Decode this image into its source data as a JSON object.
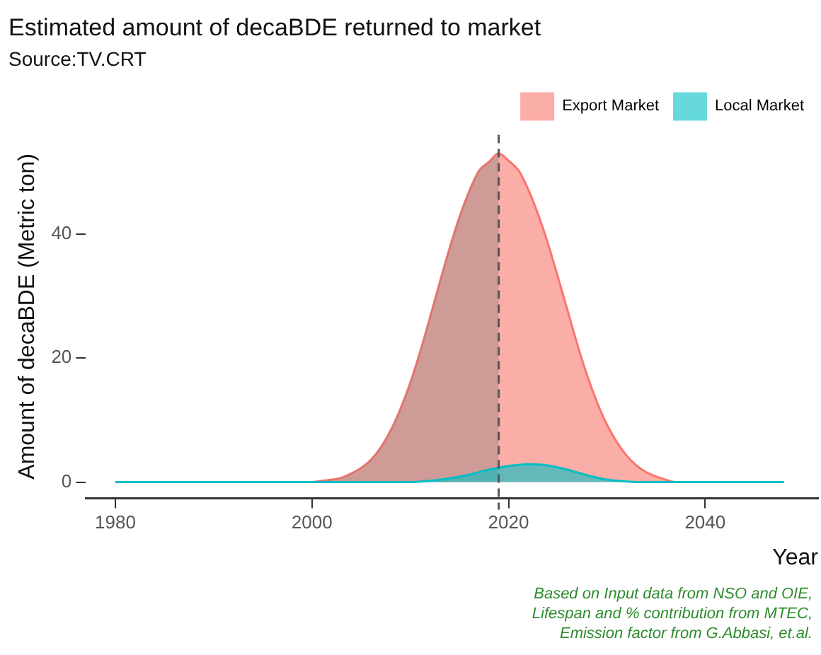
{
  "chart_data": {
    "type": "area",
    "title": "Estimated amount of decaBDE returned to market",
    "subtitle": "Source:TV.CRT",
    "xlabel": "Year",
    "ylabel": "Amount of decaBDE (Metric ton)",
    "annotations": [
      "Based on Input data from NSO and OIE,\nLifespan and % contribution from MTEC,\nEmission factor from G.Abbasi, et.al."
    ],
    "series": [
      {
        "name": "Export Market",
        "color": "#f8766d",
        "x": [
          1980,
          2000,
          2001,
          2002,
          2003,
          2004,
          2005,
          2006,
          2007,
          2008,
          2009,
          2010,
          2011,
          2012,
          2013,
          2014,
          2015,
          2016,
          2017,
          2018,
          2019,
          2020,
          2021,
          2022,
          2023,
          2024,
          2025,
          2026,
          2027,
          2028,
          2029,
          2030,
          2031,
          2032,
          2033,
          2034,
          2035,
          2036,
          2037,
          2048
        ],
        "values": [
          0,
          0,
          0.2,
          0.4,
          0.7,
          1.4,
          2.3,
          3.6,
          5.6,
          8.3,
          11.8,
          16,
          21,
          26.5,
          32.2,
          37.7,
          42.7,
          46.9,
          50.2,
          51.6,
          53,
          51.8,
          50.3,
          47.2,
          43.2,
          38.5,
          33.2,
          27.7,
          22.2,
          17.2,
          12.9,
          9.3,
          6.5,
          4.3,
          2.7,
          1.6,
          0.9,
          0.4,
          0,
          0
        ]
      },
      {
        "color": "#7a7a7a",
        "x": [
          1980,
          2000,
          2001,
          2002,
          2003,
          2004,
          2005,
          2006,
          2007,
          2008,
          2009,
          2010,
          2011,
          2012,
          2013,
          2014,
          2015,
          2016,
          2017,
          2018,
          2019
        ],
        "values": [
          0,
          0,
          0.2,
          0.4,
          0.7,
          1.4,
          2.3,
          3.6,
          5.6,
          8.3,
          11.8,
          16,
          21,
          26.5,
          32.2,
          37.7,
          42.7,
          46.9,
          50.2,
          51.6,
          53
        ]
      },
      {
        "name": "Local Market",
        "color": "#00bfc4",
        "x": [
          1980,
          2010,
          2012,
          2014,
          2016,
          2018,
          2019,
          2020,
          2022,
          2024,
          2026,
          2028,
          2030,
          2032,
          2034,
          2048
        ],
        "values": [
          0,
          0,
          0.2,
          0.6,
          1.2,
          2,
          2.3,
          2.6,
          2.9,
          2.7,
          2,
          1.1,
          0.4,
          0.1,
          0,
          0
        ]
      }
    ],
    "ref_lines": [
      {
        "axis": "x",
        "value": 2019,
        "color": "#555555",
        "line_style": "dashed"
      }
    ],
    "xlim": [
      1977,
      2051.5
    ],
    "xticks": [
      1980,
      2000,
      2020,
      2040
    ],
    "ylim": [
      -2.6,
      56
    ],
    "yticks": [
      0,
      20,
      40
    ],
    "grid": false,
    "legend": "top right"
  }
}
